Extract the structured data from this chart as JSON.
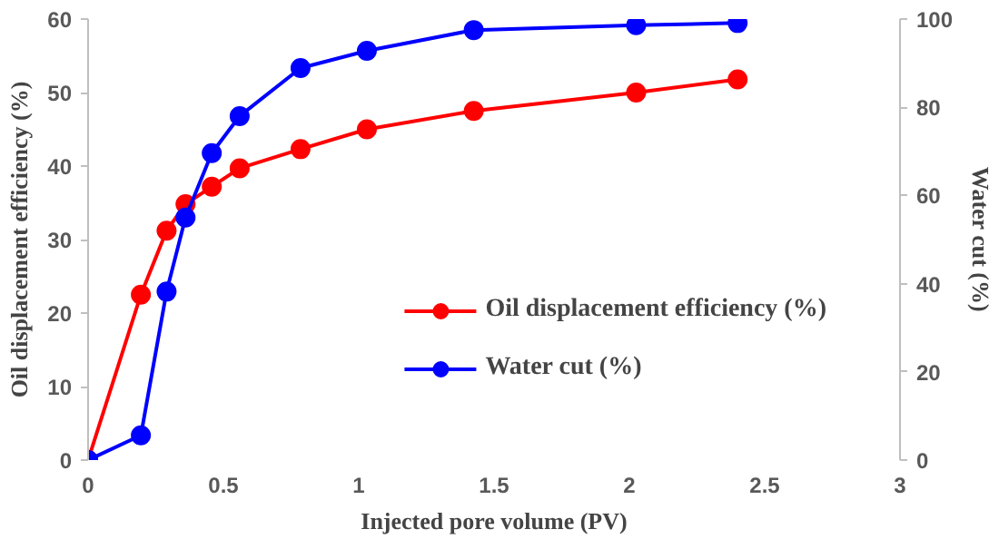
{
  "chart_data": {
    "type": "line",
    "xlabel": "Injected pore volume (PV)",
    "ylabel": "Oil displacement efficiency (%)",
    "y2label": "Water cut (%)",
    "x": [
      0,
      0.195,
      0.29,
      0.36,
      0.457,
      0.56,
      0.785,
      1.03,
      1.425,
      2.025,
      2.4
    ],
    "series": [
      {
        "name": "Oil displacement efficiency (%)",
        "color": "#ff0000",
        "values": [
          0,
          22.5,
          31.2,
          34.8,
          37.2,
          39.7,
          42.3,
          45.0,
          47.5,
          50.0,
          51.8
        ]
      },
      {
        "name": "Water cut (%)",
        "color": "#0000ff",
        "axis": "y2",
        "values": [
          0,
          5.6,
          38.2,
          55,
          69.6,
          78,
          88.9,
          92.8,
          97.5,
          98.6,
          99.1
        ]
      }
    ],
    "xlim": [
      0,
      3
    ],
    "xticks": [
      0,
      0.5,
      1,
      1.5,
      2,
      2.5,
      3
    ],
    "ylim": [
      0,
      60
    ],
    "yticks": [
      0,
      10,
      20,
      30,
      40,
      50,
      60
    ],
    "y2lim": [
      0,
      100
    ],
    "y2ticks": [
      0,
      20,
      40,
      60,
      80,
      100
    ],
    "marker": "circle",
    "line_style": "solid",
    "grid": false,
    "legend": "bottom right"
  }
}
